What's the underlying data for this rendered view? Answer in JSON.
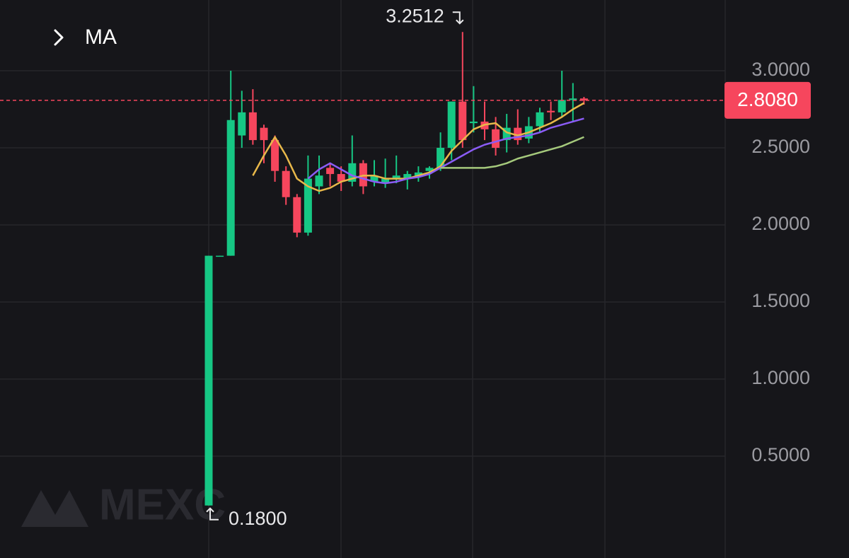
{
  "chart_data": {
    "type": "candlestick",
    "indicator_label": "MA",
    "watermark": "MEXC",
    "ylim": [
      -0.1606,
      3.4587
    ],
    "yticks": [
      {
        "value": 0.5,
        "label": "0.5000"
      },
      {
        "value": 1,
        "label": "1.0000"
      },
      {
        "value": 1.5,
        "label": "1.5000"
      },
      {
        "value": 2,
        "label": "2.0000"
      },
      {
        "value": 2.5,
        "label": "2.5000"
      },
      {
        "value": 3,
        "label": "3.0000"
      }
    ],
    "grid": true,
    "up_color": "#16c784",
    "down_color": "#f6465d",
    "open": [
      0.18,
      1.8,
      1.8,
      2.58,
      2.73,
      2.63,
      2.55,
      2.35,
      2.18,
      1.95,
      2.25,
      2.37,
      2.33,
      2.28,
      2.4,
      2.28,
      2.27,
      2.3,
      2.3,
      2.32,
      2.35,
      2.37,
      2.5,
      2.8,
      2.66,
      2.67,
      2.62,
      2.55,
      2.63,
      2.56,
      2.64,
      2.74,
      2.73,
      2.81,
      2.82
    ],
    "high": [
      1.8,
      1.8,
      3.0,
      2.87,
      2.88,
      2.65,
      2.58,
      2.38,
      2.2,
      2.45,
      2.45,
      2.4,
      2.38,
      2.58,
      2.42,
      2.42,
      2.43,
      2.45,
      2.35,
      2.38,
      2.38,
      2.6,
      2.8,
      3.2512,
      2.9,
      2.8,
      2.7,
      2.72,
      2.75,
      2.7,
      2.76,
      2.8,
      3.0,
      2.92,
      2.83
    ],
    "low": [
      0.18,
      1.8,
      1.8,
      2.5,
      2.52,
      2.4,
      2.28,
      2.13,
      1.92,
      1.93,
      2.2,
      2.25,
      2.22,
      2.25,
      2.2,
      2.25,
      2.24,
      2.27,
      2.23,
      2.28,
      2.3,
      2.35,
      2.42,
      2.5,
      2.6,
      2.55,
      2.45,
      2.47,
      2.52,
      2.53,
      2.6,
      2.68,
      2.7,
      2.67,
      2.78
    ],
    "close": [
      1.8,
      1.8,
      2.68,
      2.73,
      2.55,
      2.55,
      2.35,
      2.18,
      1.95,
      2.3,
      2.32,
      2.33,
      2.28,
      2.4,
      2.25,
      2.32,
      2.3,
      2.32,
      2.33,
      2.34,
      2.37,
      2.5,
      2.8,
      2.55,
      2.67,
      2.62,
      2.5,
      2.63,
      2.55,
      2.64,
      2.73,
      2.73,
      2.81,
      2.82,
      2.808
    ],
    "series": [
      {
        "color": "#e8b84a",
        "values": [
          null,
          null,
          null,
          null,
          2.32,
          2.45,
          2.57,
          2.45,
          2.3,
          2.25,
          2.22,
          2.24,
          2.28,
          2.3,
          2.32,
          2.32,
          2.3,
          2.3,
          2.3,
          2.32,
          2.34,
          2.38,
          2.48,
          2.55,
          2.62,
          2.65,
          2.66,
          2.6,
          2.58,
          2.6,
          2.63,
          2.66,
          2.7,
          2.75,
          2.79
        ]
      },
      {
        "color": "#8b5cf6",
        "values": [
          null,
          null,
          null,
          null,
          null,
          null,
          null,
          null,
          null,
          2.3,
          2.36,
          2.4,
          2.36,
          2.32,
          2.3,
          2.28,
          2.27,
          2.28,
          2.3,
          2.31,
          2.33,
          2.37,
          2.41,
          2.45,
          2.49,
          2.52,
          2.54,
          2.56,
          2.57,
          2.58,
          2.6,
          2.63,
          2.65,
          2.67,
          2.69
        ]
      },
      {
        "color": "#a5c97c",
        "values": [
          null,
          null,
          null,
          null,
          null,
          null,
          null,
          null,
          null,
          null,
          null,
          null,
          null,
          null,
          null,
          null,
          null,
          null,
          null,
          null,
          null,
          2.37,
          2.37,
          2.37,
          2.37,
          2.37,
          2.38,
          2.4,
          2.43,
          2.45,
          2.47,
          2.49,
          2.51,
          2.54,
          2.57
        ]
      }
    ],
    "high_label": {
      "value": 3.2512,
      "label": "3.2512"
    },
    "low_label": {
      "value": 0.18,
      "label": "0.1800"
    },
    "last_price": {
      "value": 2.808,
      "label": "2.8080"
    },
    "last_price_color": "#f6465d"
  }
}
